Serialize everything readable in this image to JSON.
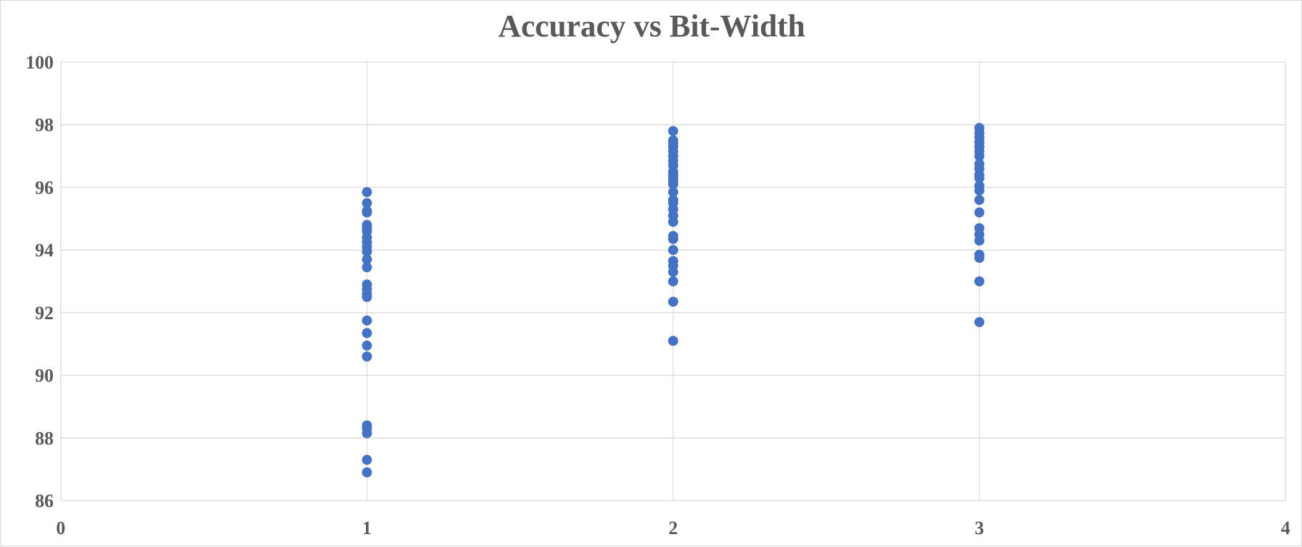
{
  "chart_data": {
    "type": "scatter",
    "title": "Accuracy vs Bit-Width",
    "xlabel": "",
    "ylabel": "",
    "xlim": [
      0,
      4
    ],
    "ylim": [
      86,
      100
    ],
    "x_ticks": [
      0,
      1,
      2,
      3,
      4
    ],
    "y_ticks": [
      86,
      88,
      90,
      92,
      94,
      96,
      98,
      100
    ],
    "grid": true,
    "legend": "none",
    "marker_color": "#4472C4",
    "gridline_color": "#d9d9d9",
    "series": [
      {
        "points": [
          [
            1,
            95.85
          ],
          [
            1,
            95.5
          ],
          [
            1,
            95.25
          ],
          [
            1,
            95.2
          ],
          [
            1,
            94.8
          ],
          [
            1,
            94.7
          ],
          [
            1,
            94.6
          ],
          [
            1,
            94.4
          ],
          [
            1,
            94.25
          ],
          [
            1,
            94.1
          ],
          [
            1,
            93.95
          ],
          [
            1,
            93.7
          ],
          [
            1,
            93.45
          ],
          [
            1,
            92.9
          ],
          [
            1,
            92.75
          ],
          [
            1,
            92.6
          ],
          [
            1,
            92.5
          ],
          [
            1,
            91.75
          ],
          [
            1,
            91.35
          ],
          [
            1,
            90.95
          ],
          [
            1,
            90.6
          ],
          [
            1,
            88.4
          ],
          [
            1,
            88.3
          ],
          [
            1,
            88.15
          ],
          [
            1,
            87.3
          ],
          [
            1,
            86.9
          ],
          [
            2,
            97.8
          ],
          [
            2,
            97.5
          ],
          [
            2,
            97.4
          ],
          [
            2,
            97.3
          ],
          [
            2,
            97.15
          ],
          [
            2,
            97.0
          ],
          [
            2,
            96.85
          ],
          [
            2,
            96.7
          ],
          [
            2,
            96.5
          ],
          [
            2,
            96.4
          ],
          [
            2,
            96.3
          ],
          [
            2,
            96.2
          ],
          [
            2,
            96.1
          ],
          [
            2,
            95.85
          ],
          [
            2,
            95.6
          ],
          [
            2,
            95.5
          ],
          [
            2,
            95.3
          ],
          [
            2,
            95.1
          ],
          [
            2,
            94.9
          ],
          [
            2,
            94.45
          ],
          [
            2,
            94.35
          ],
          [
            2,
            94.0
          ],
          [
            2,
            93.65
          ],
          [
            2,
            93.5
          ],
          [
            2,
            93.3
          ],
          [
            2,
            93.0
          ],
          [
            2,
            92.35
          ],
          [
            2,
            91.1
          ],
          [
            3,
            97.9
          ],
          [
            3,
            97.75
          ],
          [
            3,
            97.6
          ],
          [
            3,
            97.45
          ],
          [
            3,
            97.3
          ],
          [
            3,
            97.15
          ],
          [
            3,
            97.0
          ],
          [
            3,
            96.75
          ],
          [
            3,
            96.6
          ],
          [
            3,
            96.4
          ],
          [
            3,
            96.3
          ],
          [
            3,
            96.05
          ],
          [
            3,
            95.9
          ],
          [
            3,
            95.6
          ],
          [
            3,
            95.2
          ],
          [
            3,
            94.7
          ],
          [
            3,
            94.5
          ],
          [
            3,
            94.3
          ],
          [
            3,
            93.85
          ],
          [
            3,
            93.75
          ],
          [
            3,
            93.0
          ],
          [
            3,
            91.7
          ]
        ]
      }
    ]
  }
}
